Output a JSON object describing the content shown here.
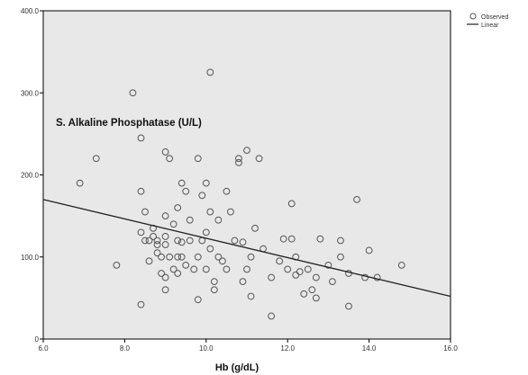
{
  "chart_data": {
    "type": "scatter",
    "title": "S. Alkaline Phosphatase (U/L)",
    "xlabel": "Hb (g/dL)",
    "ylabel": "",
    "xlim": [
      6.0,
      16.0
    ],
    "ylim": [
      0,
      400
    ],
    "xticks": [
      "6.0",
      "8.0",
      "10.0",
      "12.0",
      "14.0",
      "16.0"
    ],
    "yticks": [
      "0",
      "100.0",
      "200.0",
      "300.0",
      "400.0"
    ],
    "grid": false,
    "legend_position": "top-right",
    "colors": {
      "plot_bg": "#e8e8e8",
      "marker": "#555555",
      "line": "#222222"
    },
    "series": [
      {
        "name": "Observed",
        "kind": "scatter",
        "points": [
          [
            6.9,
            190
          ],
          [
            7.3,
            220
          ],
          [
            7.8,
            90
          ],
          [
            8.2,
            300
          ],
          [
            8.4,
            245
          ],
          [
            8.4,
            180
          ],
          [
            8.4,
            42
          ],
          [
            8.4,
            130
          ],
          [
            8.5,
            120
          ],
          [
            8.5,
            155
          ],
          [
            8.6,
            120
          ],
          [
            8.6,
            95
          ],
          [
            8.7,
            125
          ],
          [
            8.7,
            135
          ],
          [
            8.8,
            120
          ],
          [
            8.8,
            115
          ],
          [
            8.8,
            105
          ],
          [
            8.9,
            100
          ],
          [
            8.9,
            80
          ],
          [
            9.0,
            125
          ],
          [
            9.0,
            115
          ],
          [
            9.0,
            60
          ],
          [
            9.0,
            75
          ],
          [
            9.0,
            150
          ],
          [
            9.0,
            228
          ],
          [
            9.1,
            220
          ],
          [
            9.1,
            100
          ],
          [
            9.2,
            85
          ],
          [
            9.2,
            140
          ],
          [
            9.3,
            160
          ],
          [
            9.3,
            120
          ],
          [
            9.3,
            100
          ],
          [
            9.3,
            80
          ],
          [
            9.4,
            190
          ],
          [
            9.4,
            118
          ],
          [
            9.4,
            100
          ],
          [
            9.5,
            180
          ],
          [
            9.5,
            90
          ],
          [
            9.6,
            145
          ],
          [
            9.6,
            120
          ],
          [
            9.7,
            85
          ],
          [
            9.8,
            220
          ],
          [
            9.8,
            48
          ],
          [
            9.8,
            100
          ],
          [
            9.9,
            175
          ],
          [
            9.9,
            120
          ],
          [
            10.0,
            190
          ],
          [
            10.0,
            85
          ],
          [
            10.0,
            130
          ],
          [
            10.1,
            325
          ],
          [
            10.1,
            155
          ],
          [
            10.1,
            110
          ],
          [
            10.2,
            70
          ],
          [
            10.2,
            60
          ],
          [
            10.3,
            145
          ],
          [
            10.3,
            100
          ],
          [
            10.4,
            95
          ],
          [
            10.5,
            180
          ],
          [
            10.5,
            85
          ],
          [
            10.6,
            155
          ],
          [
            10.7,
            120
          ],
          [
            10.8,
            220
          ],
          [
            10.8,
            215
          ],
          [
            10.9,
            70
          ],
          [
            10.9,
            118
          ],
          [
            11.0,
            230
          ],
          [
            11.0,
            85
          ],
          [
            11.1,
            52
          ],
          [
            11.1,
            100
          ],
          [
            11.2,
            135
          ],
          [
            11.3,
            220
          ],
          [
            11.4,
            110
          ],
          [
            11.6,
            28
          ],
          [
            11.6,
            75
          ],
          [
            11.8,
            95
          ],
          [
            11.9,
            122
          ],
          [
            12.0,
            85
          ],
          [
            12.1,
            165
          ],
          [
            12.1,
            122
          ],
          [
            12.2,
            100
          ],
          [
            12.2,
            78
          ],
          [
            12.3,
            82
          ],
          [
            12.4,
            55
          ],
          [
            12.5,
            85
          ],
          [
            12.6,
            60
          ],
          [
            12.7,
            50
          ],
          [
            12.7,
            75
          ],
          [
            12.8,
            122
          ],
          [
            13.0,
            90
          ],
          [
            13.1,
            70
          ],
          [
            13.3,
            120
          ],
          [
            13.3,
            100
          ],
          [
            13.5,
            40
          ],
          [
            13.5,
            80
          ],
          [
            13.7,
            170
          ],
          [
            13.9,
            75
          ],
          [
            14.0,
            108
          ],
          [
            14.2,
            75
          ],
          [
            14.8,
            90
          ]
        ]
      },
      {
        "name": "Linear",
        "kind": "line",
        "points": [
          [
            6.0,
            170
          ],
          [
            16.0,
            52
          ]
        ]
      }
    ]
  }
}
